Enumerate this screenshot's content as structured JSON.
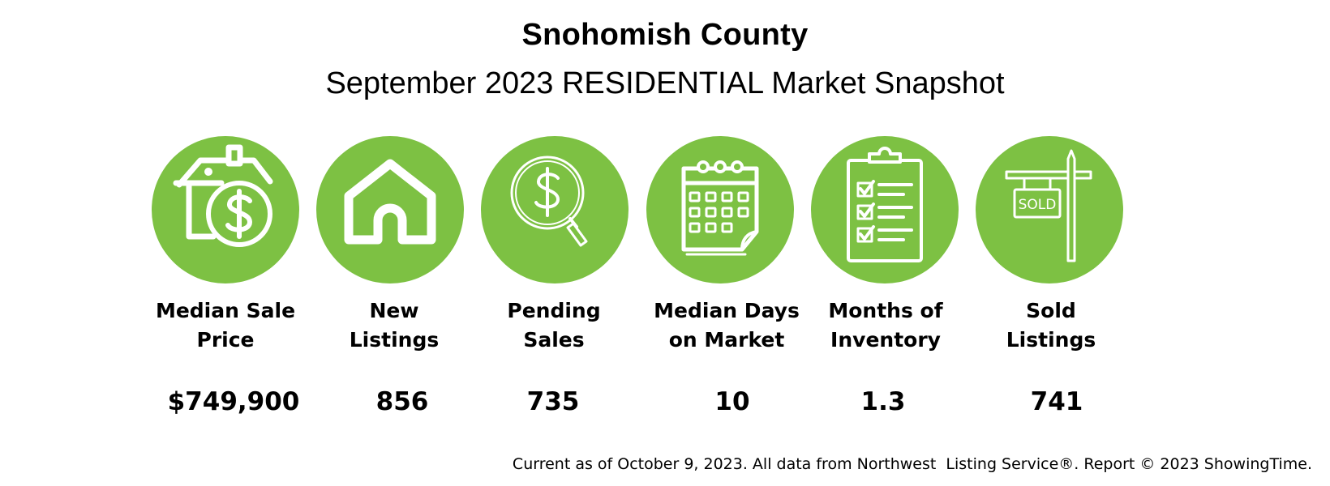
{
  "header": {
    "title": "Snohomish County",
    "subtitle": "September 2023 RESIDENTIAL Market Snapshot"
  },
  "metrics": [
    {
      "label": "Median Sale\nPrice",
      "value": "$749,900",
      "icon": "house-dollar-icon"
    },
    {
      "label": "New\nListings",
      "value": "856",
      "icon": "house-icon"
    },
    {
      "label": "Pending\nSales",
      "value": "735",
      "icon": "magnifier-dollar-icon"
    },
    {
      "label": "Median Days\non Market",
      "value": "10",
      "icon": "calendar-icon"
    },
    {
      "label": "Months of\nInventory",
      "value": "1.3",
      "icon": "clipboard-checklist-icon"
    },
    {
      "label": "Sold\nListings",
      "value": "741",
      "icon": "sold-sign-icon"
    }
  ],
  "sold_sign_text": "SOLD",
  "footer": "Current as of October 9, 2023. All data from Northwest  Listing Service®. Report © 2023 ShowingTime.",
  "colors": {
    "accent": "#7dc143",
    "icon": "#ffffff",
    "text": "#000000",
    "background": "#ffffff"
  }
}
